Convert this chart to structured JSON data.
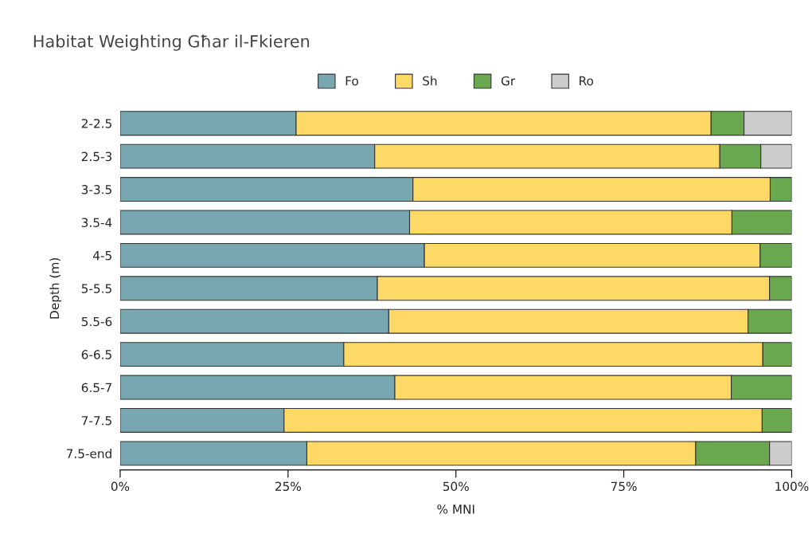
{
  "chart_data": {
    "type": "bar",
    "orientation": "horizontal",
    "stacked": true,
    "title": "Habitat Weighting Għar il-Fkieren",
    "xlabel": "% MNI",
    "ylabel": "Depth (m)",
    "categories": [
      "2-2.5",
      "2.5-3",
      "3-3.5",
      "3.5-4",
      "4-5",
      "5-5.5",
      "5.5-6",
      "6-6.5",
      "6.5-7",
      "7-7.5",
      "7.5-end"
    ],
    "series": [
      {
        "name": "Fo",
        "color": "#78a6b1",
        "values": [
          26.2,
          37.9,
          43.6,
          43.1,
          45.3,
          38.3,
          40.0,
          33.3,
          40.9,
          24.4,
          27.8
        ]
      },
      {
        "name": "Sh",
        "color": "#ffd966",
        "values": [
          61.8,
          51.4,
          53.2,
          48.0,
          50.0,
          58.4,
          53.5,
          62.4,
          50.1,
          71.2,
          57.9
        ]
      },
      {
        "name": "Gr",
        "color": "#6aa84f",
        "values": [
          4.9,
          6.1,
          3.2,
          8.9,
          4.7,
          3.3,
          6.5,
          4.3,
          9.0,
          4.4,
          11.0
        ]
      },
      {
        "name": "Ro",
        "color": "#cccccc",
        "values": [
          7.1,
          4.6,
          null,
          null,
          null,
          null,
          null,
          null,
          null,
          null,
          3.3
        ]
      }
    ],
    "xlim": [
      0,
      100
    ],
    "xticks": [
      {
        "value": 0,
        "label": "0%"
      },
      {
        "value": 25,
        "label": "25%"
      },
      {
        "value": 50,
        "label": "50%"
      },
      {
        "value": 75,
        "label": "75%"
      },
      {
        "value": 100,
        "label": "100%"
      }
    ],
    "grid": false,
    "legend": "top"
  }
}
